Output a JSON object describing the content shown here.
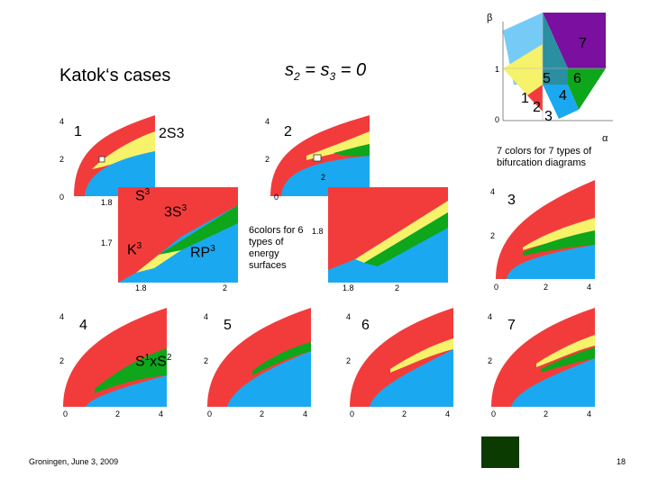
{
  "slide": {
    "title": "Katok‘s cases",
    "subtitle": "s",
    "subtitle_rest": "2 = s",
    "subtitle_sub3": "3",
    "subtitle_tail": " = 0",
    "footer": "Groningen, June 3, 2009",
    "page_number": "18",
    "note_left": "6colors for 6 types of energy surfaces",
    "note_right": "7 colors for 7 types of bifurcation diagrams"
  },
  "triangle": {
    "beta": "β",
    "alpha": "α",
    "tick_1": "1",
    "tick_0": "0",
    "regions": [
      "1",
      "2",
      "3",
      "4",
      "5",
      "6",
      "7"
    ]
  },
  "plots": {
    "p1": {
      "label": "1",
      "extra": "2S3",
      "ticks_y": [
        "4",
        "2",
        "0"
      ]
    },
    "p2": {
      "label": "2",
      "ticks_y": [
        "4",
        "2",
        "0"
      ]
    },
    "p3": {
      "label": "3",
      "ticks_y": [
        "4",
        "2",
        "0"
      ],
      "ticks_x": [
        "0",
        "2",
        "4"
      ]
    },
    "zoom_a": {
      "labels": [
        "S3",
        "3S3",
        "K3",
        "RP3"
      ],
      "ticks_y": [
        "1.8",
        "1.7"
      ],
      "ticks_x": [
        "1.8",
        "2"
      ]
    },
    "zoom_b": {
      "ticks_y": [
        "2",
        "1.8"
      ],
      "ticks_x": [
        "1.8",
        "2"
      ]
    },
    "p4": {
      "label": "4",
      "extra": "S1xS2",
      "ticks_y": [
        "4",
        "2"
      ],
      "ticks_x": [
        "0",
        "2",
        "4"
      ]
    },
    "p5": {
      "label": "5",
      "ticks_y": [
        "4",
        "2"
      ],
      "ticks_x": [
        "0",
        "2",
        "4"
      ]
    },
    "p6": {
      "label": "6",
      "ticks_y": [
        "4",
        "2"
      ],
      "ticks_x": [
        "0",
        "2",
        "4"
      ]
    },
    "p7": {
      "label": "7",
      "ticks_y": [
        "4",
        "2"
      ],
      "ticks_x": [
        "0",
        "2",
        "4"
      ]
    }
  },
  "colors": {
    "red": "#f23c3c",
    "blue": "#1aa9f0",
    "yellow": "#f6f26a",
    "green": "#0ea61a",
    "purple": "#7a0fa0",
    "teal": "#2a8fa0",
    "dark_green": "#0b3b00"
  }
}
